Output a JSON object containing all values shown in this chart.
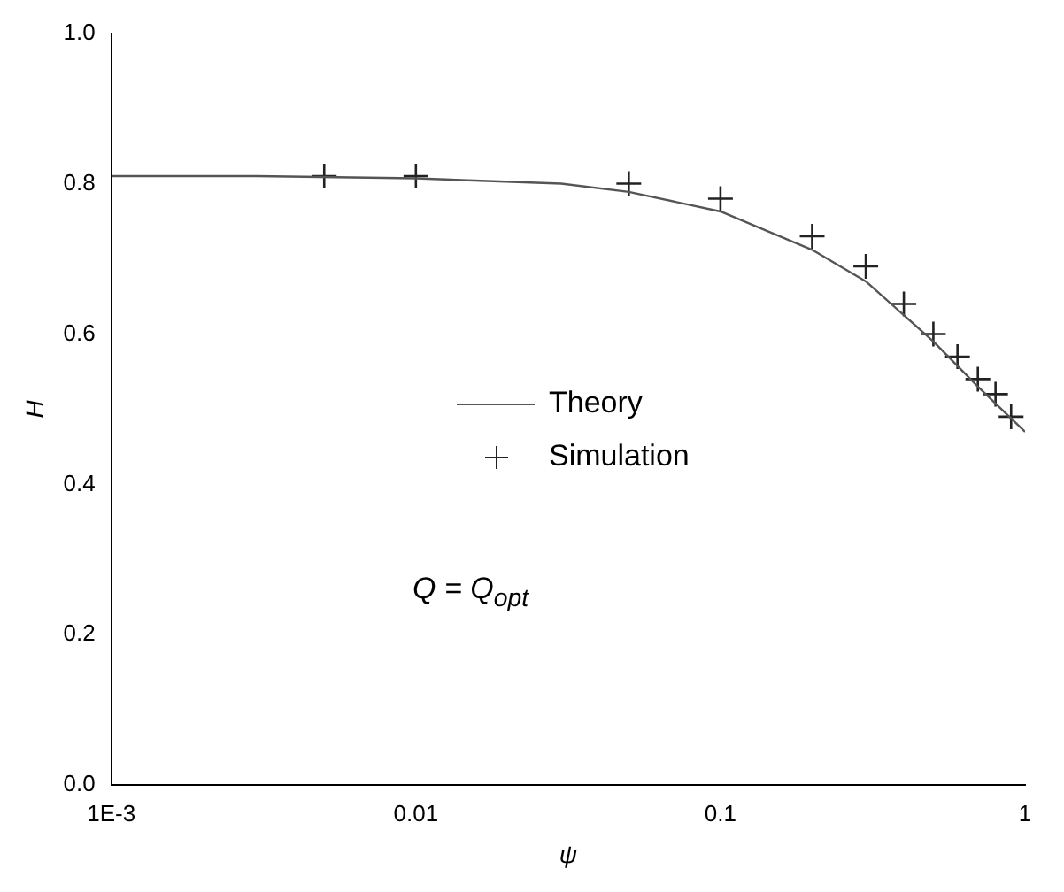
{
  "chart_data": {
    "type": "line",
    "xlabel": "ψ",
    "ylabel": "H",
    "log": "x",
    "xlim": [
      0.001,
      1
    ],
    "xticks": [
      {
        "value": 0.001,
        "label": "1E-3"
      },
      {
        "value": 0.01,
        "label": "0.01"
      },
      {
        "value": 0.1,
        "label": "0.1"
      },
      {
        "value": 1,
        "label": "1"
      }
    ],
    "ylim": [
      0,
      1
    ],
    "yticks": [
      {
        "value": 0,
        "label": "0.0"
      },
      {
        "value": 0.2,
        "label": "0.2"
      },
      {
        "value": 0.4,
        "label": "0.4"
      },
      {
        "value": 0.6,
        "label": "0.6"
      },
      {
        "value": 0.8,
        "label": "0.8"
      },
      {
        "value": 1,
        "label": "1.0"
      }
    ],
    "grid": false,
    "legend": "center",
    "annotations": [
      "Q = Q$_{opt}$"
    ],
    "series": [
      {
        "name": "Theory",
        "color": "#555555",
        "marker": "none",
        "line_style": "solid",
        "x": [
          0.001,
          0.003,
          0.01,
          0.03,
          0.05,
          0.1,
          0.2,
          0.3,
          0.5,
          0.7,
          1
        ],
        "values": [
          0.81,
          0.81,
          0.807,
          0.8,
          0.789,
          0.763,
          0.712,
          0.67,
          0.59,
          0.53,
          0.47
        ]
      },
      {
        "name": "Simulation",
        "type": "scatter",
        "color": "#222222",
        "marker": "cross",
        "x": [
          0.005,
          0.01,
          0.05,
          0.1,
          0.2,
          0.3,
          0.4,
          0.5,
          0.6,
          0.7,
          0.8,
          0.9
        ],
        "values": [
          0.81,
          0.81,
          0.8,
          0.78,
          0.73,
          0.69,
          0.64,
          0.6,
          0.57,
          0.54,
          0.52,
          0.49
        ]
      }
    ]
  }
}
